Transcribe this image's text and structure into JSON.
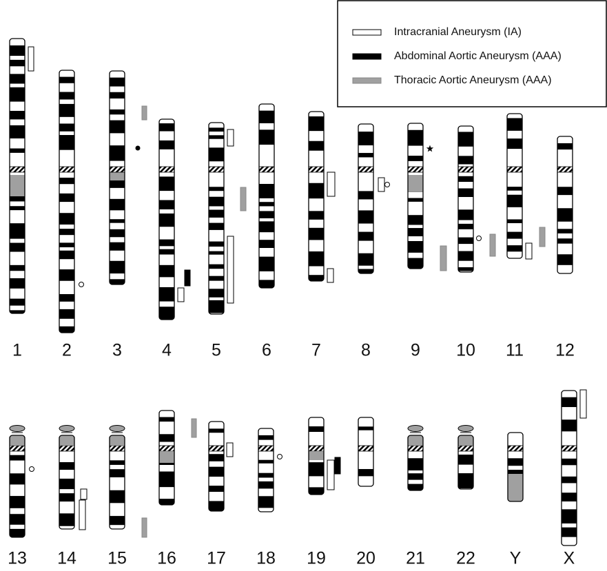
{
  "legend": {
    "items": [
      {
        "label": "Intracranial Aneurysm (IA)"
      },
      {
        "label": "Abdominal Aortic Aneurysm (AAA)"
      },
      {
        "label": "Thoracic Aortic Aneurysm (AAA)"
      }
    ]
  },
  "chromosomes": {
    "labels": [
      "1",
      "2",
      "3",
      "4",
      "5",
      "6",
      "7",
      "8",
      "9",
      "10",
      "11",
      "12",
      "13",
      "14",
      "15",
      "16",
      "17",
      "18",
      "19",
      "20",
      "21",
      "22",
      "Y",
      "X"
    ]
  }
}
